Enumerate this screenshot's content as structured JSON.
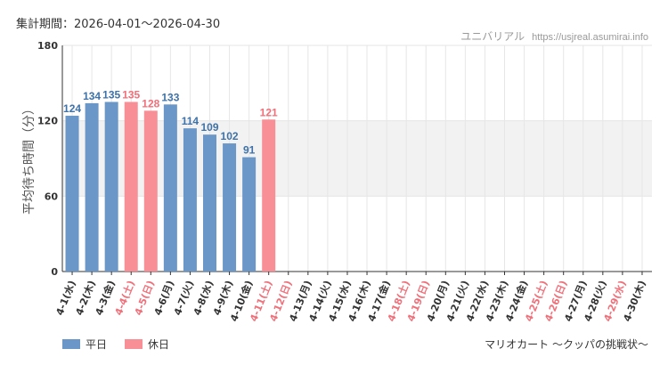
{
  "header": {
    "period_label": "集計期間：2026-04-01～2026-04-30",
    "site_name": "ユニバリアル",
    "site_url": "https://usjreal.asumirai.info"
  },
  "footer": {
    "attraction_name": "マリオカート ～クッパの挑戦状～"
  },
  "legend": {
    "weekday_label": "平日",
    "holiday_label": "休日"
  },
  "colors": {
    "weekday": "#6a97c8",
    "holiday": "#f88f96",
    "weekday_text": "#3f72a8",
    "holiday_text": "#f0707a",
    "band": "#f2f2f2",
    "grid": "#e6e6e6",
    "axis": "#333333"
  },
  "chart_data": {
    "type": "bar",
    "ylabel": "平均待ち時間（分）",
    "ylim": [
      0,
      180
    ],
    "yticks": [
      0,
      60,
      120,
      180
    ],
    "shaded_band": [
      60,
      120
    ],
    "grid": true,
    "legend_position": "bottom-left",
    "categories": [
      "4-1(水)",
      "4-2(木)",
      "4-3(金)",
      "4-4(土)",
      "4-5(日)",
      "4-6(月)",
      "4-7(火)",
      "4-8(水)",
      "4-9(木)",
      "4-10(金)",
      "4-11(土)",
      "4-12(日)",
      "4-13(月)",
      "4-14(火)",
      "4-15(水)",
      "4-16(木)",
      "4-17(金)",
      "4-18(土)",
      "4-19(日)",
      "4-20(月)",
      "4-21(火)",
      "4-22(水)",
      "4-23(木)",
      "4-24(金)",
      "4-25(土)",
      "4-26(日)",
      "4-27(月)",
      "4-28(火)",
      "4-29(水)",
      "4-30(木)"
    ],
    "day_type": [
      "weekday",
      "weekday",
      "weekday",
      "holiday",
      "holiday",
      "weekday",
      "weekday",
      "weekday",
      "weekday",
      "weekday",
      "holiday",
      "holiday",
      "weekday",
      "weekday",
      "weekday",
      "weekday",
      "weekday",
      "holiday",
      "holiday",
      "weekday",
      "weekday",
      "weekday",
      "weekday",
      "weekday",
      "holiday",
      "holiday",
      "weekday",
      "weekday",
      "holiday",
      "weekday"
    ],
    "values": [
      124,
      134,
      135,
      135,
      128,
      133,
      114,
      109,
      102,
      91,
      121,
      null,
      null,
      null,
      null,
      null,
      null,
      null,
      null,
      null,
      null,
      null,
      null,
      null,
      null,
      null,
      null,
      null,
      null,
      null
    ]
  }
}
